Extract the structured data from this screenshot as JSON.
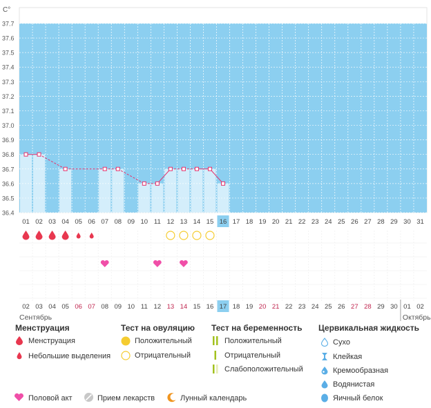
{
  "colors": {
    "plot_bg": "#8ccff0",
    "bar_fill": "#d4eefb",
    "line": "#e5306b",
    "grid": "#ffffff",
    "today_bg": "#8ccff0",
    "weekend": "#c0264f",
    "drop": "#e8374f",
    "heart": "#f04fa8",
    "ring": "#f5cc30",
    "preg": "#a3c21f",
    "cervical": "#5aaee6",
    "moon": "#f0951f",
    "pill": "#c8c8c8"
  },
  "chart_data": {
    "type": "line",
    "ylabel": "C°",
    "ylim": [
      36.4,
      37.7
    ],
    "yticks": [
      "36.4",
      "36.5",
      "36.6",
      "36.7",
      "36.8",
      "36.9",
      "37.0",
      "37.1",
      "37.2",
      "37.3",
      "37.4",
      "37.5",
      "37.6",
      "37.7"
    ],
    "days": [
      "01",
      "02",
      "03",
      "04",
      "05",
      "06",
      "07",
      "08",
      "09",
      "10",
      "11",
      "12",
      "13",
      "14",
      "15",
      "16",
      "17",
      "18",
      "19",
      "20",
      "21",
      "22",
      "23",
      "24",
      "25",
      "26",
      "27",
      "28",
      "29",
      "30",
      "31"
    ],
    "today_index": 15,
    "series": [
      {
        "values": [
          36.8,
          36.8,
          null,
          36.7,
          null,
          null,
          36.7,
          36.7,
          null,
          36.6,
          36.6,
          36.7,
          36.7,
          36.7,
          36.7,
          36.6,
          null,
          null,
          null,
          null,
          null,
          null,
          null,
          null,
          null,
          null,
          null,
          null,
          null,
          null,
          null
        ],
        "line_style": [
          "solid",
          "dashed",
          "dashed",
          "dashed",
          "dashed",
          "dashed",
          "solid",
          "dashed",
          "dashed",
          "solid",
          "solid",
          "solid",
          "solid",
          "solid",
          "solid"
        ]
      }
    ],
    "bars": [
      1,
      1,
      0,
      1,
      0,
      0,
      1,
      1,
      0,
      1,
      1,
      1,
      1,
      1,
      1,
      1,
      0,
      0,
      0,
      0,
      0,
      0,
      0,
      0,
      0,
      0,
      0,
      0,
      0,
      0,
      0
    ],
    "menstruation": [
      "big",
      "big",
      "big",
      "big",
      "small",
      "small"
    ],
    "ovulation_tests": [
      {
        "day_index": 11,
        "result": "negative"
      },
      {
        "day_index": 12,
        "result": "negative"
      },
      {
        "day_index": 13,
        "result": "negative"
      },
      {
        "day_index": 14,
        "result": "negative"
      }
    ],
    "intercourse_days": [
      6,
      10,
      12
    ],
    "cycle_days": [
      "02",
      "03",
      "04",
      "05",
      "06",
      "07",
      "08",
      "09",
      "10",
      "11",
      "12",
      "13",
      "14",
      "15",
      "16",
      "17",
      "18",
      "19",
      "20",
      "21",
      "22",
      "23",
      "24",
      "25",
      "26",
      "27",
      "28",
      "29",
      "30",
      "01",
      "02"
    ],
    "cycle_weekend": [
      4,
      5,
      11,
      12,
      18,
      19,
      25,
      26
    ],
    "weekend": [
      12,
      13,
      18,
      19,
      25,
      26
    ],
    "cycle_today_index": 15,
    "month_left": "Сентябрь",
    "month_right": "Октябрь"
  },
  "legend": {
    "menstruation": {
      "title": "Менструация",
      "items": [
        "Менструация",
        "Небольшие выделения"
      ]
    },
    "ovulation": {
      "title": "Тест на овуляцию",
      "items": [
        "Положительный",
        "Отрицательный"
      ]
    },
    "pregnancy": {
      "title": "Тест на беременность",
      "items": [
        "Положительный",
        "Отрицательный",
        "Слабоположительный"
      ]
    },
    "cervical": {
      "title": "Цервикальная жидкость",
      "items": [
        "Сухо",
        "Клейкая",
        "Кремообразная",
        "Водянистая",
        "Яичный белок"
      ]
    },
    "bottom": [
      "Половой акт",
      "Прием лекарств",
      "Лунный календарь"
    ]
  }
}
